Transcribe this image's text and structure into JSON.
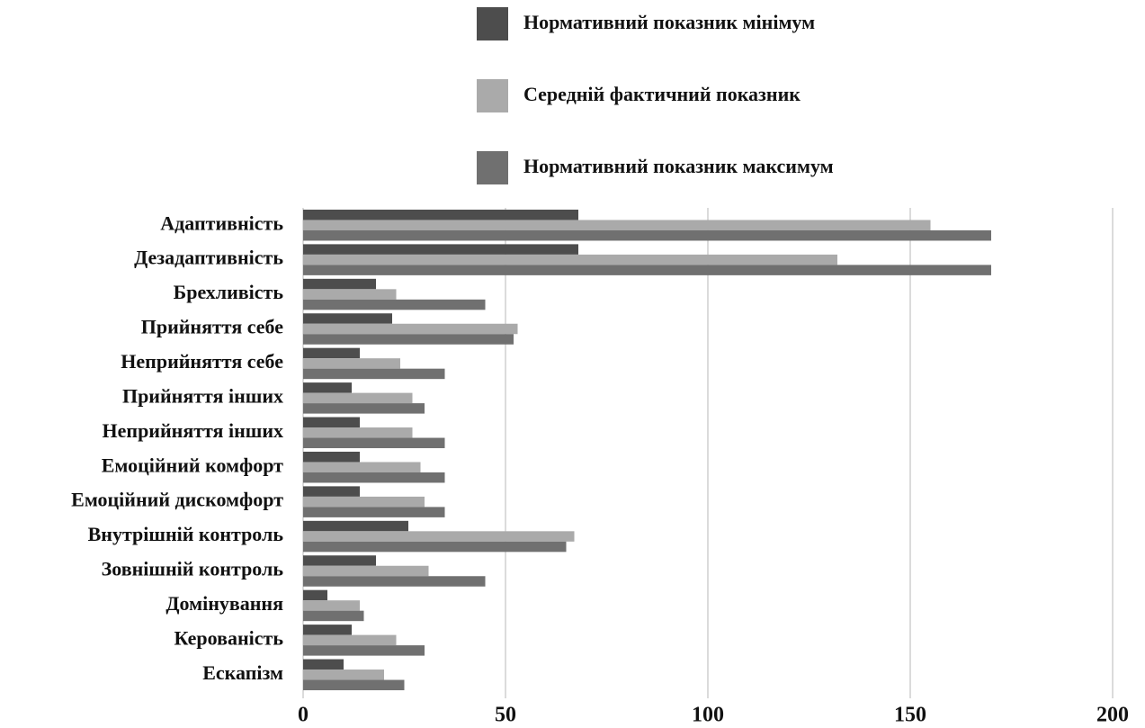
{
  "chart_data": {
    "type": "bar",
    "orientation": "horizontal",
    "categories": [
      "Адаптивність",
      "Дезадаптивність",
      "Брехливість",
      "Прийняття себе",
      "Неприйняття себе",
      "Прийняття інших",
      "Неприйняття інших",
      "Емоційний комфорт",
      "Емоційний дискомфорт",
      "Внутрішній контроль",
      "Зовнішній контроль",
      "Домінування",
      "Керованість",
      "Ескапізм"
    ],
    "series": [
      {
        "name": "Нормативний показник мінімум",
        "color": "#4d4d4d",
        "values": [
          68,
          68,
          18,
          22,
          14,
          12,
          14,
          14,
          14,
          26,
          18,
          6,
          12,
          10
        ]
      },
      {
        "name": "Середній фактичний показник",
        "color": "#aaaaaa",
        "values": [
          155,
          132,
          23,
          53,
          24,
          27,
          27,
          29,
          30,
          67,
          31,
          14,
          23,
          20
        ]
      },
      {
        "name": "Нормативний показник максимум",
        "color": "#707070",
        "values": [
          170,
          170,
          45,
          52,
          35,
          30,
          35,
          35,
          35,
          65,
          45,
          15,
          30,
          25
        ]
      }
    ],
    "xlim": [
      0,
      200
    ],
    "xticks": [
      0,
      50,
      100,
      150,
      200
    ],
    "grid": true
  }
}
